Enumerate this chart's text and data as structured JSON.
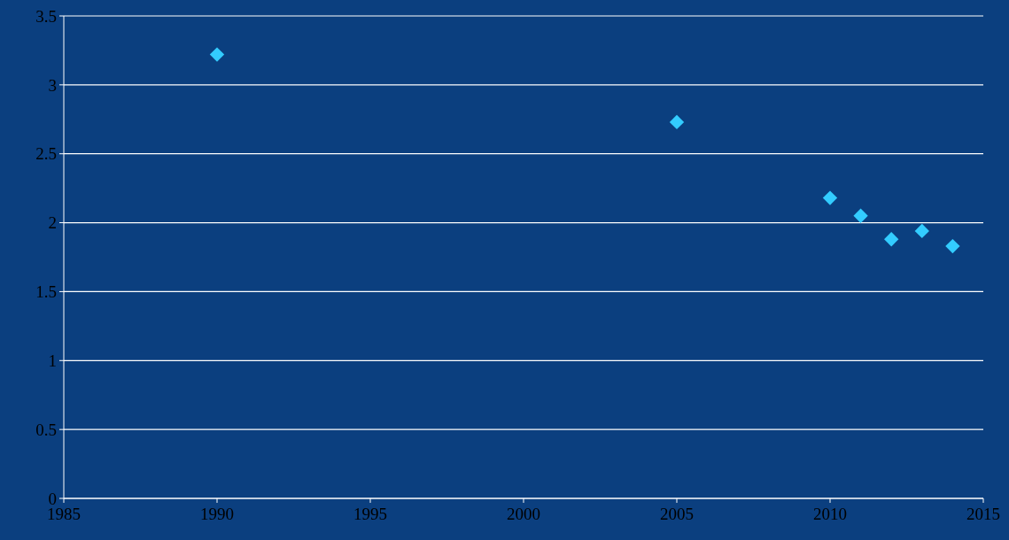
{
  "chart_data": {
    "type": "scatter",
    "x": [
      1990,
      2005,
      2010,
      2011,
      2012,
      2013,
      2014
    ],
    "series": [
      {
        "color": "#33ccff",
        "values": [
          3.22,
          2.73,
          2.18,
          2.05,
          1.88,
          1.94,
          1.83
        ]
      }
    ],
    "xlim": [
      1985,
      2015
    ],
    "xticks": [
      1985,
      1990,
      1995,
      2000,
      2005,
      2010,
      2015
    ],
    "ylim": [
      0,
      3.5
    ],
    "yticks": [
      0,
      0.5,
      1,
      1.5,
      2,
      2.5,
      3,
      3.5
    ],
    "grid": "y",
    "marker": "diamond"
  }
}
